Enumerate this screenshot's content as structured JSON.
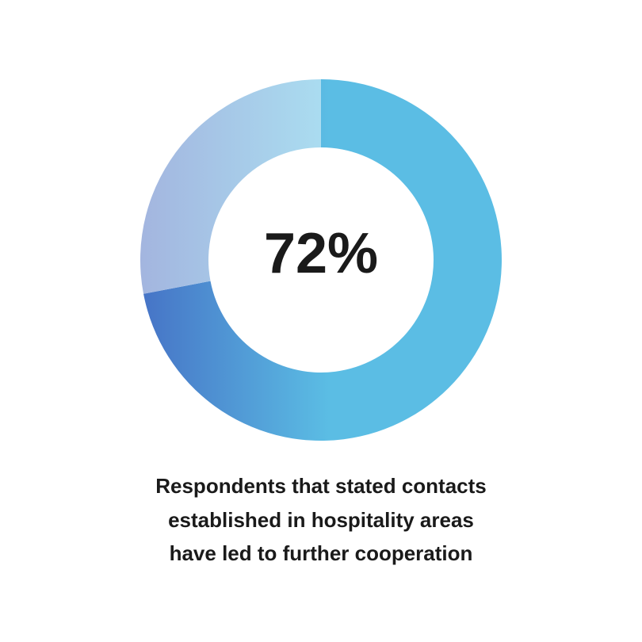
{
  "chart_data": {
    "type": "donut",
    "values": [
      72,
      28
    ],
    "colors": [
      [
        "#4673c6",
        "#5bbde4"
      ],
      [
        "#a3b5df",
        "#aadcf0"
      ]
    ],
    "center_label": "72%",
    "caption": [
      "Respondents that stated contacts",
      "established in hospitality areas",
      "have led to further cooperation"
    ]
  }
}
